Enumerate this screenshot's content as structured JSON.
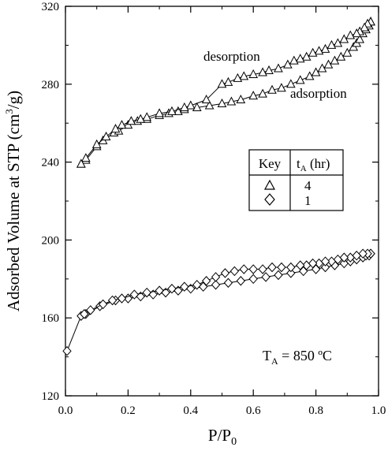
{
  "chart_data": {
    "type": "scatter",
    "xlabel": "P/P",
    "xlabel_sub": "0",
    "ylabel": "Adsorbed Volume at STP (cm",
    "ylabel_sup": "3",
    "ylabel_tail": "/g)",
    "xlim": [
      0.0,
      1.0
    ],
    "ylim": [
      120,
      320
    ],
    "x_ticks": [
      0.0,
      0.2,
      0.4,
      0.6,
      0.8,
      1.0
    ],
    "x_tick_labels": [
      "0.0",
      "0.2",
      "0.4",
      "0.6",
      "0.8",
      "1.0"
    ],
    "y_ticks": [
      120,
      160,
      200,
      240,
      280,
      320
    ],
    "y_tick_labels": [
      "120",
      "160",
      "200",
      "240",
      "280",
      "320"
    ],
    "grid": false,
    "legend_placement": "right-middle",
    "legend": {
      "header_key": "Key",
      "header_t": "t",
      "header_t_sub": "A",
      "header_t_tail": " (hr)",
      "rows": [
        {
          "marker": "triangle",
          "label": "4"
        },
        {
          "marker": "diamond",
          "label": "1"
        }
      ]
    },
    "annotations": {
      "desorption": "desorption",
      "adsorption": "adsorption",
      "temp_main": "T",
      "temp_sub": "A",
      "temp_tail": " = 850 ºC"
    },
    "series": [
      {
        "label": "4",
        "marker": "triangle",
        "branches": [
          {
            "branch": "adsorption",
            "x": [
              0.05,
              0.065,
              0.1,
              0.12,
              0.155,
              0.17,
              0.2,
              0.23,
              0.26,
              0.3,
              0.33,
              0.36,
              0.38,
              0.42,
              0.46,
              0.5,
              0.53,
              0.56,
              0.6,
              0.63,
              0.66,
              0.69,
              0.72,
              0.75,
              0.78,
              0.8,
              0.82,
              0.84,
              0.86,
              0.88,
              0.9,
              0.92,
              0.93,
              0.94,
              0.95,
              0.96,
              0.97,
              0.975
            ],
            "y": [
              239,
              241,
              248,
              251,
              255,
              256,
              259,
              261,
              262,
              264,
              265,
              266,
              267,
              268,
              269,
              270,
              271,
              272,
              274,
              275,
              277,
              278,
              280,
              282,
              284,
              286,
              288,
              290,
              292,
              294,
              296,
              299,
              301,
              303,
              306,
              308,
              310,
              312
            ]
          },
          {
            "branch": "desorption",
            "x": [
              0.975,
              0.965,
              0.955,
              0.94,
              0.93,
              0.91,
              0.89,
              0.87,
              0.85,
              0.83,
              0.81,
              0.79,
              0.77,
              0.75,
              0.73,
              0.71,
              0.68,
              0.65,
              0.63,
              0.6,
              0.57,
              0.55,
              0.52,
              0.5,
              0.45,
              0.4,
              0.38,
              0.34,
              0.3,
              0.26,
              0.24,
              0.21,
              0.18,
              0.16,
              0.13,
              0.1,
              0.065,
              0.05
            ],
            "y": [
              312,
              311,
              309,
              307,
              306,
              305,
              303,
              301,
              300,
              298,
              297,
              296,
              294,
              293,
              292,
              290,
              288,
              287,
              286,
              285,
              284,
              283,
              281,
              280,
              272,
              269,
              268,
              266,
              265,
              263,
              262,
              261,
              259,
              257,
              253,
              249,
              242,
              239
            ]
          }
        ]
      },
      {
        "label": "1",
        "marker": "diamond",
        "branches": [
          {
            "branch": "adsorption",
            "x": [
              0.005,
              0.05,
              0.065,
              0.11,
              0.16,
              0.2,
              0.24,
              0.28,
              0.32,
              0.36,
              0.4,
              0.44,
              0.48,
              0.52,
              0.56,
              0.6,
              0.64,
              0.68,
              0.72,
              0.76,
              0.8,
              0.83,
              0.86,
              0.89,
              0.91,
              0.93,
              0.95,
              0.96,
              0.97,
              0.975
            ],
            "y": [
              143,
              161,
              162,
              166,
              169,
              170,
              171,
              172,
              173,
              174,
              175,
              176,
              177,
              178,
              179,
              180,
              181,
              182,
              183,
              184,
              185,
              186,
              187,
              188,
              189,
              190,
              191,
              192,
              192,
              193
            ]
          },
          {
            "branch": "desorption",
            "x": [
              0.975,
              0.965,
              0.95,
              0.93,
              0.91,
              0.89,
              0.87,
              0.85,
              0.83,
              0.81,
              0.79,
              0.77,
              0.75,
              0.72,
              0.69,
              0.66,
              0.63,
              0.6,
              0.57,
              0.54,
              0.51,
              0.48,
              0.45,
              0.42,
              0.38,
              0.34,
              0.3,
              0.26,
              0.22,
              0.18,
              0.15,
              0.12,
              0.08,
              0.06
            ],
            "y": [
              193,
              193,
              193,
              192,
              191,
              191,
              190,
              189,
              189,
              188,
              188,
              187,
              187,
              186,
              186,
              186,
              185,
              185,
              185,
              184,
              183,
              181,
              179,
              177,
              176,
              175,
              174,
              173,
              172,
              170,
              169,
              167,
              164,
              162
            ]
          }
        ]
      }
    ]
  }
}
